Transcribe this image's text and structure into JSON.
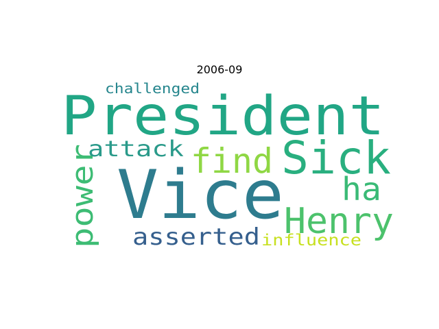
{
  "chart_data": {
    "type": "wordcloud",
    "title": "2006-09",
    "words": [
      {
        "text": "President",
        "color": "#21a685"
      },
      {
        "text": "Vice",
        "color": "#2e7c8e"
      },
      {
        "text": "Sick",
        "color": "#29af7f"
      },
      {
        "text": "find",
        "color": "#8fd744"
      },
      {
        "text": "Henry",
        "color": "#4cc26c"
      },
      {
        "text": "ha",
        "color": "#3aba76"
      },
      {
        "text": "power",
        "color": "#3dbc74"
      },
      {
        "text": "attack",
        "color": "#2a9a8a"
      },
      {
        "text": "asserted",
        "color": "#355f8d"
      },
      {
        "text": "influence",
        "color": "#c7e020"
      },
      {
        "text": "challenged",
        "color": "#26868d"
      }
    ]
  }
}
